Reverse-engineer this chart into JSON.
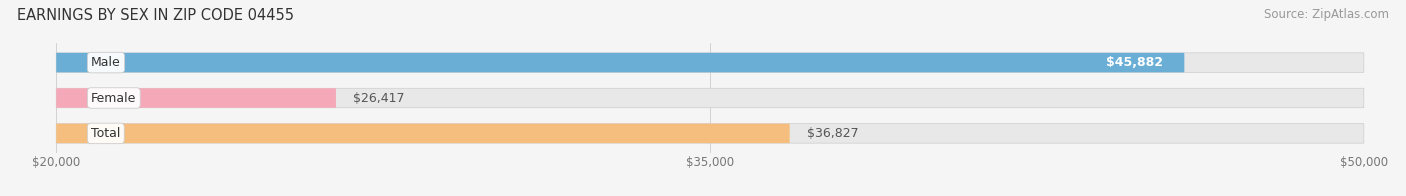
{
  "title": "EARNINGS BY SEX IN ZIP CODE 04455",
  "source": "Source: ZipAtlas.com",
  "categories": [
    "Male",
    "Female",
    "Total"
  ],
  "values": [
    45882,
    26417,
    36827
  ],
  "bar_colors": [
    "#6aaed6",
    "#f4a8b8",
    "#f5be7e"
  ],
  "value_labels": [
    "$45,882",
    "$26,417",
    "$36,827"
  ],
  "value_inside": [
    true,
    false,
    false
  ],
  "xlim": [
    20000,
    50000
  ],
  "xticks": [
    20000,
    35000,
    50000
  ],
  "xtick_labels": [
    "$20,000",
    "$35,000",
    "$50,000"
  ],
  "background_color": "#f5f5f5",
  "bar_bg_color": "#e8e8e8",
  "title_fontsize": 10.5,
  "source_fontsize": 8.5,
  "tick_fontsize": 8.5,
  "label_fontsize": 9,
  "value_fontsize": 9
}
